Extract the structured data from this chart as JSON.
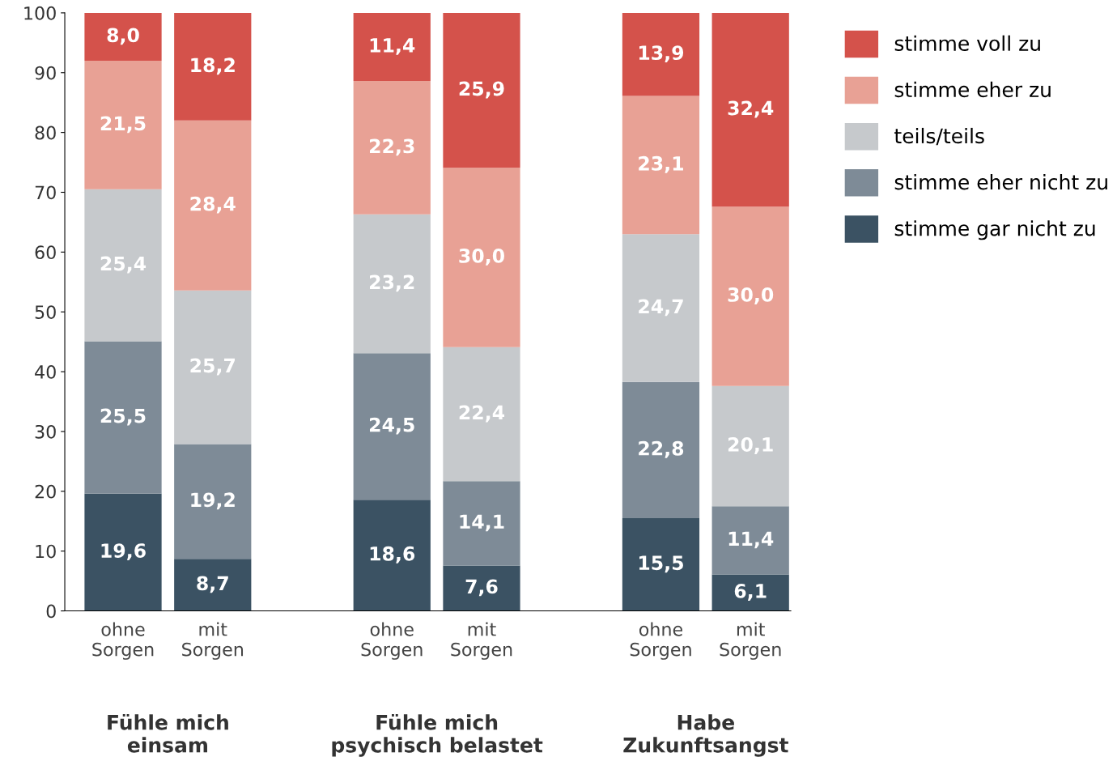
{
  "chart_data": {
    "type": "bar",
    "stacked": true,
    "categories": [
      "ohne\nSorgen",
      "mit\nSorgen",
      null,
      "ohne\nSorgen",
      "mit\nSorgen",
      null,
      "ohne\nSorgen",
      "mit\nSorgen"
    ],
    "annotations": [
      "Fühle mich\neinsam",
      "Fühle mich\npsychisch belastet",
      "Habe\nZukunftsangst"
    ],
    "series": [
      {
        "name": "stimme gar nicht zu",
        "color": "#3b5263",
        "values": [
          19.6,
          8.7,
          null,
          18.6,
          7.6,
          null,
          15.5,
          6.1
        ],
        "value_labels": [
          "19,6",
          "8,7",
          null,
          "18,6",
          "7,6",
          null,
          "15,5",
          "6,1"
        ]
      },
      {
        "name": "stimme eher nicht zu",
        "color": "#7e8b97",
        "values": [
          25.5,
          19.2,
          null,
          24.5,
          14.1,
          null,
          22.8,
          11.4
        ],
        "value_labels": [
          "25,5",
          "19,2",
          null,
          "24,5",
          "14,1",
          null,
          "22,8",
          "11,4"
        ]
      },
      {
        "name": "teils/teils",
        "color": "#c6c9cc",
        "values": [
          25.4,
          25.7,
          null,
          23.2,
          22.4,
          null,
          24.7,
          20.1
        ],
        "value_labels": [
          "25,4",
          "25,7",
          null,
          "23,2",
          "22,4",
          null,
          "24,7",
          "20,1"
        ]
      },
      {
        "name": "stimme eher zu",
        "color": "#e8a195",
        "values": [
          21.5,
          28.4,
          null,
          22.3,
          30.0,
          null,
          23.1,
          30.0
        ],
        "value_labels": [
          "21,5",
          "28,4",
          null,
          "22,3",
          "30,0",
          null,
          "23,1",
          "30,0"
        ]
      },
      {
        "name": "stimme voll zu",
        "color": "#d4524b",
        "values": [
          8.0,
          18.2,
          null,
          11.4,
          25.9,
          null,
          13.9,
          32.4
        ],
        "value_labels": [
          "8,0",
          "18,2",
          null,
          "11,4",
          "25,9",
          null,
          "13,9",
          "32,4"
        ]
      }
    ],
    "ylim": [
      0,
      100
    ],
    "yticks": [
      0,
      10,
      20,
      30,
      40,
      50,
      60,
      70,
      80,
      90,
      100
    ],
    "grid": false,
    "legend": "top right"
  }
}
